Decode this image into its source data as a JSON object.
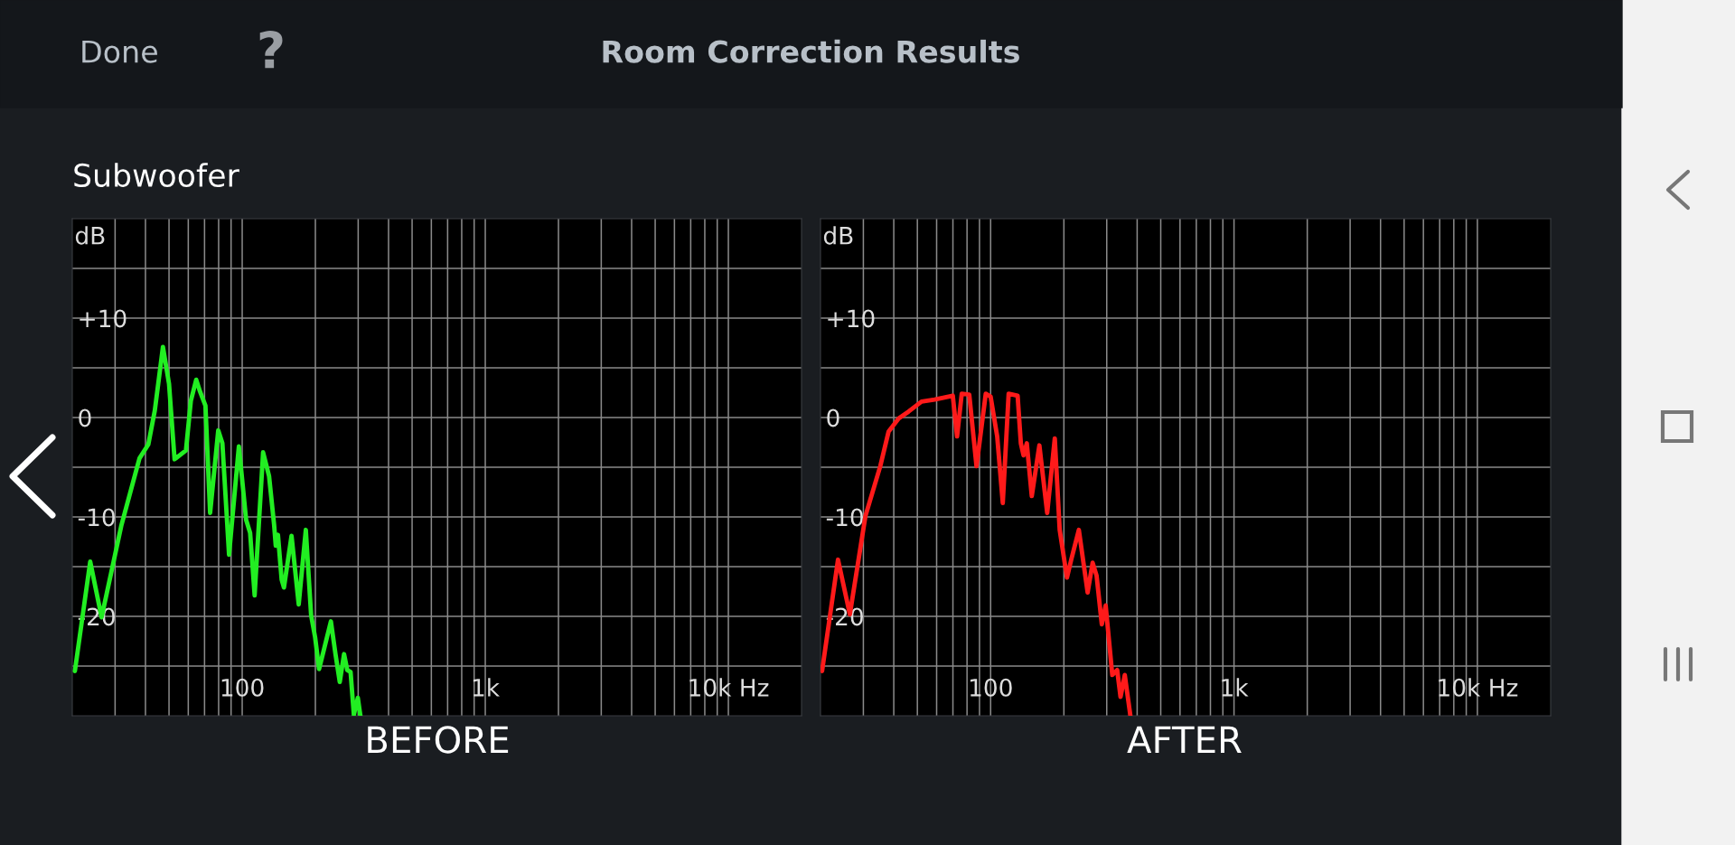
{
  "chart_data": [
    {
      "type": "line",
      "title": "Room Correction Results",
      "subtitle": "Subwoofer",
      "annotations": [
        "Done",
        "?"
      ],
      "xlabel": "BEFORE",
      "ylabel": "dB",
      "log": "x",
      "grid": true,
      "legend": false,
      "xlim": [
        20,
        20000
      ],
      "ylim": [
        -30,
        20
      ],
      "xticks": [
        {
          "value": 30,
          "label": null
        },
        {
          "value": 40,
          "label": null
        },
        {
          "value": 50,
          "label": null
        },
        {
          "value": 60,
          "label": null
        },
        {
          "value": 70,
          "label": null
        },
        {
          "value": 80,
          "label": null
        },
        {
          "value": 90,
          "label": null
        },
        100,
        {
          "value": 200,
          "label": null
        },
        {
          "value": 300,
          "label": null
        },
        {
          "value": 400,
          "label": null
        },
        {
          "value": 500,
          "label": null
        },
        {
          "value": 600,
          "label": null
        },
        {
          "value": 700,
          "label": null
        },
        {
          "value": 800,
          "label": null
        },
        {
          "value": 900,
          "label": null
        },
        {
          "value": 1000,
          "label": "1k"
        },
        {
          "value": 2000,
          "label": null
        },
        {
          "value": 3000,
          "label": null
        },
        {
          "value": 4000,
          "label": null
        },
        {
          "value": 5000,
          "label": null
        },
        {
          "value": 6000,
          "label": null
        },
        {
          "value": 7000,
          "label": null
        },
        {
          "value": 8000,
          "label": null
        },
        {
          "value": 9000,
          "label": null
        },
        {
          "value": 10000,
          "label": "10k Hz"
        }
      ],
      "yticks": [
        {
          "value": -25,
          "label": null
        },
        -20,
        {
          "value": -15,
          "label": null
        },
        -10,
        {
          "value": -5,
          "label": null
        },
        0,
        {
          "value": 5,
          "label": null
        },
        {
          "value": 10,
          "label": "+10"
        },
        {
          "value": 15,
          "label": null
        }
      ],
      "series": [
        {
          "color": "#22ee22",
          "x": [
            20.5,
            23.7,
            26.4,
            31.8,
            37.8,
            41.1,
            43.7,
            47.2,
            50,
            52.7,
            58.7,
            61.5,
            64.7,
            67.1,
            70.6,
            73.8,
            79.7,
            82.9,
            88.3,
            96.9,
            103.8,
            107.8,
            112.5,
            121.9,
            129,
            135.3,
            137.4,
            140.3,
            145.3,
            148.5,
            159.6,
            170.8,
            182.7,
            192.1,
            199.5,
            207.1,
            215.6,
            231.7,
            242,
            252,
            262.4,
            270.6,
            279.2,
            287.9,
            299,
            306.4
          ],
          "values": [
            -25.5,
            -14.5,
            -20.1,
            -10.9,
            -4.1,
            -2.7,
            0.7,
            7.1,
            3.4,
            -4.2,
            -3.3,
            1.7,
            3.8,
            2.6,
            1.2,
            -9.6,
            -1.3,
            -2.6,
            -13.8,
            -2.9,
            -10.3,
            -11.6,
            -17.9,
            -3.5,
            -5.9,
            -10.8,
            -12.9,
            -11.8,
            -16.3,
            -17.1,
            -11.9,
            -18.8,
            -11.3,
            -19.9,
            -22.1,
            -25.3,
            -23.6,
            -20.5,
            -23.8,
            -26.6,
            -23.8,
            -25.4,
            -25.6,
            -29.9,
            -28.2,
            -30
          ]
        }
      ]
    },
    {
      "type": "line",
      "xlabel": "AFTER",
      "ylabel": "dB",
      "log": "x",
      "grid": true,
      "legend": false,
      "xlim": [
        20,
        20000
      ],
      "ylim": [
        -30,
        20
      ],
      "xticks": [
        {
          "value": 30,
          "label": null
        },
        {
          "value": 40,
          "label": null
        },
        {
          "value": 50,
          "label": null
        },
        {
          "value": 60,
          "label": null
        },
        {
          "value": 70,
          "label": null
        },
        {
          "value": 80,
          "label": null
        },
        {
          "value": 90,
          "label": null
        },
        100,
        {
          "value": 200,
          "label": null
        },
        {
          "value": 300,
          "label": null
        },
        {
          "value": 400,
          "label": null
        },
        {
          "value": 500,
          "label": null
        },
        {
          "value": 600,
          "label": null
        },
        {
          "value": 700,
          "label": null
        },
        {
          "value": 800,
          "label": null
        },
        {
          "value": 900,
          "label": null
        },
        {
          "value": 1000,
          "label": "1k"
        },
        {
          "value": 2000,
          "label": null
        },
        {
          "value": 3000,
          "label": null
        },
        {
          "value": 4000,
          "label": null
        },
        {
          "value": 5000,
          "label": null
        },
        {
          "value": 6000,
          "label": null
        },
        {
          "value": 7000,
          "label": null
        },
        {
          "value": 8000,
          "label": null
        },
        {
          "value": 9000,
          "label": null
        },
        {
          "value": 10000,
          "label": "10k Hz"
        }
      ],
      "yticks": [
        {
          "value": -25,
          "label": null
        },
        -20,
        {
          "value": -15,
          "label": null
        },
        -10,
        {
          "value": -5,
          "label": null
        },
        0,
        {
          "value": 5,
          "label": null
        },
        {
          "value": 10,
          "label": "+10"
        },
        {
          "value": 15,
          "label": null
        }
      ],
      "series": [
        {
          "color": "#ff1a1a",
          "x": [
            20.3,
            23.6,
            26.4,
            30.6,
            35.2,
            38.1,
            41.9,
            46,
            52,
            58.9,
            69.9,
            72.8,
            76.1,
            81.7,
            87.5,
            95.5,
            100,
            106.4,
            112.2,
            118.6,
            129.1,
            133.1,
            136.5,
            140.8,
            147.6,
            158.6,
            170.8,
            183.5,
            192.2,
            205.9,
            214.4,
            230.4,
            250.4,
            262.5,
            272.5,
            286.3,
            297,
            316.2,
            331.1,
            341.8,
            355.8,
            375.2
          ],
          "values": [
            -25.5,
            -14.3,
            -19.8,
            -9.9,
            -4.9,
            -1.4,
            -0.1,
            0.6,
            1.6,
            1.8,
            2.2,
            -1.9,
            2.4,
            2.3,
            -4.9,
            2.4,
            2.1,
            -1.9,
            -8.6,
            2.4,
            2.2,
            -2.6,
            -3.8,
            -2.6,
            -7.9,
            -2.8,
            -9.6,
            -2.1,
            -11.3,
            -16.1,
            -14.3,
            -11.3,
            -17.6,
            -14.6,
            -15.9,
            -20.8,
            -18.9,
            -25.9,
            -25.4,
            -28.1,
            -25.9,
            -30
          ]
        }
      ]
    }
  ]
}
